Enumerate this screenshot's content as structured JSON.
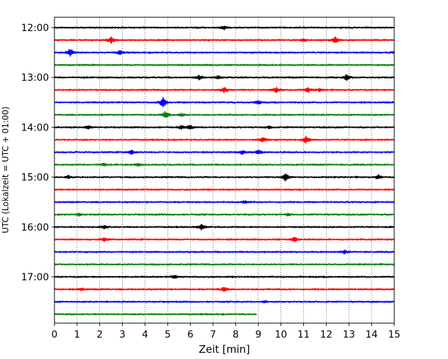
{
  "chart_data": {
    "type": "line",
    "title": "",
    "xlabel": "Zeit  [min]",
    "ylabel": "UTC (Lokalzeit = UTC + 01:00)",
    "xlim": [
      0,
      15
    ],
    "x_ticks": [
      0,
      1,
      2,
      3,
      4,
      5,
      6,
      7,
      8,
      9,
      10,
      11,
      12,
      13,
      14,
      15
    ],
    "x_tick_labels": [
      "0",
      "1",
      "2",
      "3",
      "4",
      "5",
      "6",
      "7",
      "8",
      "9",
      "10",
      "11",
      "12",
      "13",
      "14",
      "15"
    ],
    "y_tick_labels": [
      "12:00",
      "13:00",
      "14:00",
      "15:00",
      "16:00",
      "17:00"
    ],
    "vertical_grid": true,
    "row_interval_min": 15,
    "colors": [
      "#000000",
      "#ff0000",
      "#0000ff",
      "#008000"
    ],
    "series": [
      {
        "start": "12:00",
        "color": "#000000",
        "end_min": 15,
        "events": [
          [
            7.5,
            1.3
          ]
        ]
      },
      {
        "start": "12:15",
        "color": "#ff0000",
        "end_min": 15,
        "events": [
          [
            2.5,
            2.0
          ],
          [
            12.4,
            2.2
          ],
          [
            11.0,
            0.8
          ]
        ]
      },
      {
        "start": "12:30",
        "color": "#0000ff",
        "end_min": 15,
        "events": [
          [
            0.7,
            2.6
          ],
          [
            2.9,
            1.6
          ],
          [
            15.0,
            0.8
          ]
        ]
      },
      {
        "start": "12:45",
        "color": "#008000",
        "end_min": 15,
        "events": []
      },
      {
        "start": "13:00",
        "color": "#000000",
        "end_min": 15,
        "events": [
          [
            6.4,
            1.4
          ],
          [
            7.2,
            1.2
          ],
          [
            12.9,
            1.8
          ]
        ]
      },
      {
        "start": "13:15",
        "color": "#ff0000",
        "end_min": 15,
        "events": [
          [
            7.5,
            1.8
          ],
          [
            9.8,
            2.0
          ],
          [
            11.2,
            1.8
          ],
          [
            11.7,
            1.0
          ]
        ]
      },
      {
        "start": "13:30",
        "color": "#0000ff",
        "end_min": 15,
        "events": [
          [
            4.8,
            3.0
          ],
          [
            9.0,
            1.2
          ]
        ]
      },
      {
        "start": "13:45",
        "color": "#008000",
        "end_min": 15,
        "events": [
          [
            4.9,
            2.2
          ],
          [
            5.6,
            1.0
          ]
        ]
      },
      {
        "start": "14:00",
        "color": "#000000",
        "end_min": 15,
        "events": [
          [
            1.5,
            1.0
          ],
          [
            5.6,
            1.4
          ],
          [
            6.0,
            1.2
          ],
          [
            9.5,
            0.9
          ]
        ]
      },
      {
        "start": "14:15",
        "color": "#ff0000",
        "end_min": 15,
        "events": [
          [
            9.2,
            1.6
          ],
          [
            11.1,
            2.2
          ]
        ]
      },
      {
        "start": "14:30",
        "color": "#0000ff",
        "end_min": 15,
        "events": [
          [
            3.4,
            1.4
          ],
          [
            8.3,
            1.2
          ],
          [
            9.0,
            1.6
          ]
        ]
      },
      {
        "start": "14:45",
        "color": "#008000",
        "end_min": 15,
        "events": [
          [
            2.2,
            1.0
          ],
          [
            3.7,
            1.0
          ]
        ]
      },
      {
        "start": "15:00",
        "color": "#000000",
        "end_min": 15,
        "events": [
          [
            0.6,
            1.0
          ],
          [
            10.2,
            2.2
          ],
          [
            14.3,
            1.3
          ]
        ]
      },
      {
        "start": "15:15",
        "color": "#ff0000",
        "end_min": 15,
        "events": []
      },
      {
        "start": "15:30",
        "color": "#0000ff",
        "end_min": 15,
        "events": [
          [
            8.4,
            1.0
          ]
        ]
      },
      {
        "start": "15:45",
        "color": "#008000",
        "end_min": 15,
        "events": [
          [
            1.1,
            1.0
          ],
          [
            10.3,
            0.8
          ]
        ]
      },
      {
        "start": "16:00",
        "color": "#000000",
        "end_min": 15,
        "events": [
          [
            2.2,
            1.0
          ],
          [
            6.5,
            2.2
          ]
        ]
      },
      {
        "start": "16:15",
        "color": "#ff0000",
        "end_min": 15,
        "events": [
          [
            2.2,
            1.2
          ],
          [
            10.6,
            1.4
          ]
        ]
      },
      {
        "start": "16:30",
        "color": "#0000ff",
        "end_min": 15,
        "events": [
          [
            12.8,
            1.0
          ]
        ]
      },
      {
        "start": "16:45",
        "color": "#008000",
        "end_min": 15,
        "events": []
      },
      {
        "start": "17:00",
        "color": "#000000",
        "end_min": 15,
        "events": [
          [
            5.3,
            1.0
          ]
        ]
      },
      {
        "start": "17:15",
        "color": "#ff0000",
        "end_min": 15,
        "events": [
          [
            1.2,
            1.0
          ],
          [
            7.5,
            1.6
          ]
        ]
      },
      {
        "start": "17:30",
        "color": "#0000ff",
        "end_min": 15,
        "events": [
          [
            9.3,
            0.6
          ]
        ]
      },
      {
        "start": "17:45",
        "color": "#008000",
        "end_min": 8.9,
        "events": []
      }
    ]
  }
}
